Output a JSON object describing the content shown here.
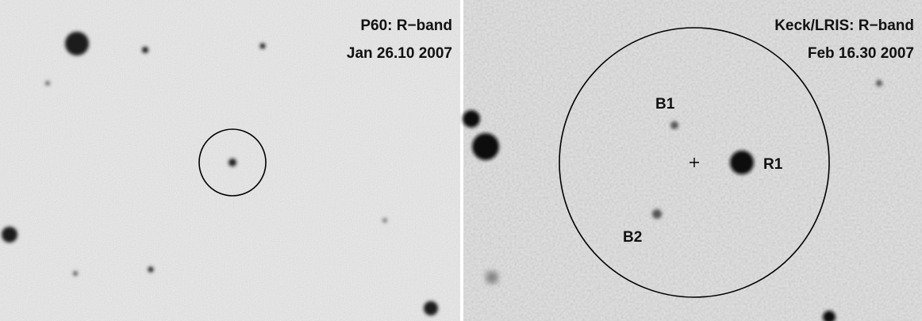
{
  "panels": [
    {
      "instrument": "P60: R−band",
      "date": "Jan 26.10 2007"
    },
    {
      "instrument": "Keck/LRIS: R−band",
      "date": "Feb 16.30 2007",
      "labels": [
        "B1",
        "R1",
        "B2"
      ]
    }
  ]
}
